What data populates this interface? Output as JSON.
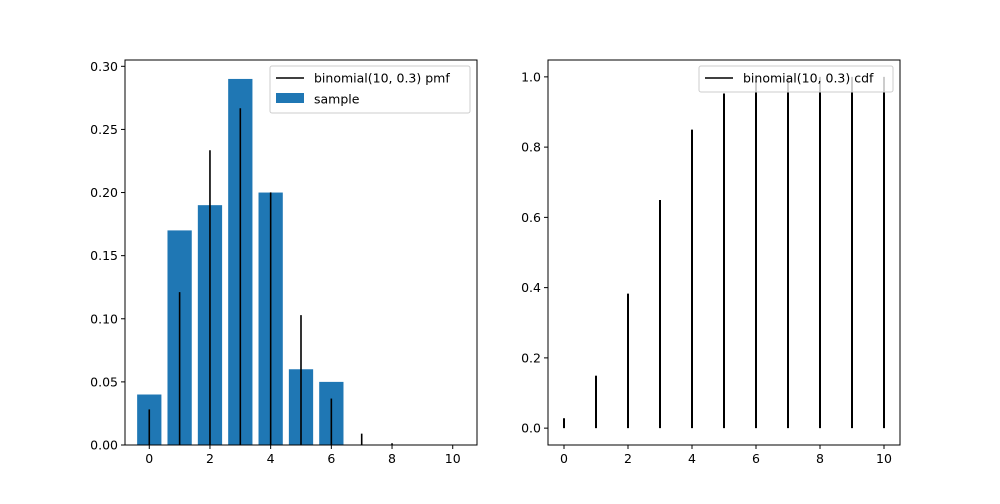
{
  "chart_data": [
    {
      "type": "bar",
      "x": [
        0,
        1,
        2,
        3,
        4,
        5,
        6,
        7,
        8,
        9,
        10
      ],
      "series": [
        {
          "name": "sample",
          "kind": "bar",
          "values": [
            0.04,
            0.17,
            0.19,
            0.29,
            0.2,
            0.06,
            0.05,
            0.0,
            0.0,
            0.0,
            0.0
          ]
        },
        {
          "name": "binomial(10, 0.3) pmf",
          "kind": "vlines",
          "values": [
            0.0282,
            0.1211,
            0.2335,
            0.2668,
            0.2001,
            0.1029,
            0.0368,
            0.009,
            0.0014,
            0.0001,
            0.0
          ]
        }
      ],
      "xlim": [
        -0.8,
        10.8
      ],
      "ylim": [
        0,
        0.305
      ],
      "xticks": [
        "0",
        "2",
        "4",
        "6",
        "8",
        "10"
      ],
      "yticks": [
        "0.00",
        "0.05",
        "0.10",
        "0.15",
        "0.20",
        "0.25",
        "0.30"
      ],
      "xtick_values": [
        0,
        2,
        4,
        6,
        8,
        10
      ],
      "ytick_values": [
        0,
        0.05,
        0.1,
        0.15,
        0.2,
        0.25,
        0.3
      ],
      "legend": [
        "binomial(10, 0.3) pmf",
        "sample"
      ],
      "legend_loc": "upper right",
      "bar_color": "#1f77b4",
      "line_color": "#000000",
      "grid": false
    },
    {
      "type": "line",
      "x": [
        0,
        1,
        2,
        3,
        4,
        5,
        6,
        7,
        8,
        9,
        10
      ],
      "series": [
        {
          "name": "binomial(10, 0.3) cdf",
          "kind": "vlines",
          "values": [
            0.0282,
            0.1493,
            0.3828,
            0.6496,
            0.8497,
            0.9527,
            0.9894,
            0.9984,
            0.9999,
            1.0,
            1.0
          ]
        }
      ],
      "xlim": [
        -0.5,
        10.5
      ],
      "ylim": [
        -0.048,
        1.048
      ],
      "xticks": [
        "0",
        "2",
        "4",
        "6",
        "8",
        "10"
      ],
      "yticks": [
        "0.0",
        "0.2",
        "0.4",
        "0.6",
        "0.8",
        "1.0"
      ],
      "xtick_values": [
        0,
        2,
        4,
        6,
        8,
        10
      ],
      "ytick_values": [
        0,
        0.2,
        0.4,
        0.6,
        0.8,
        1.0
      ],
      "legend": [
        "binomial(10, 0.3) cdf"
      ],
      "legend_loc": "upper right",
      "line_color": "#000000",
      "grid": false
    }
  ]
}
